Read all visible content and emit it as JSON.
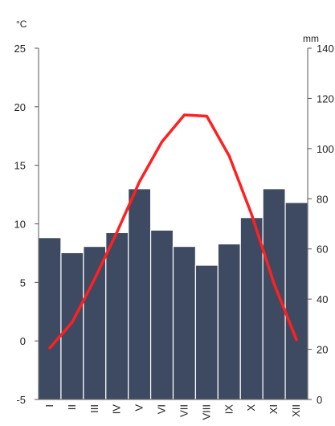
{
  "chart_data": {
    "type": "bar",
    "categories": [
      "I",
      "II",
      "III",
      "IV",
      "V",
      "VI",
      "VII",
      "VIII",
      "IX",
      "X",
      "XI",
      "XII"
    ],
    "series": [
      {
        "type": "bar",
        "axis": "right",
        "values": [
          64.5,
          58.5,
          61,
          66.5,
          84,
          67.5,
          61,
          53.5,
          62,
          72.5,
          84,
          78.5
        ],
        "color": "#3d4a61"
      },
      {
        "type": "line",
        "axis": "left",
        "values": [
          -0.6,
          1.6,
          5.3,
          9.3,
          13.6,
          17.0,
          19.3,
          19.2,
          15.8,
          10.8,
          4.9,
          0.1
        ],
        "color": "#ff2020"
      }
    ],
    "y_left": {
      "unit": "°C",
      "ylim": [
        -5,
        25
      ],
      "ticks": [
        "-5",
        "0",
        "5",
        "10",
        "15",
        "20",
        "25"
      ]
    },
    "y_right": {
      "unit": "mm",
      "ylim": [
        0,
        140
      ],
      "ticks": [
        "0",
        "20",
        "40",
        "60",
        "80",
        "100",
        "120",
        "140"
      ]
    },
    "grid": false,
    "legend": "none"
  }
}
